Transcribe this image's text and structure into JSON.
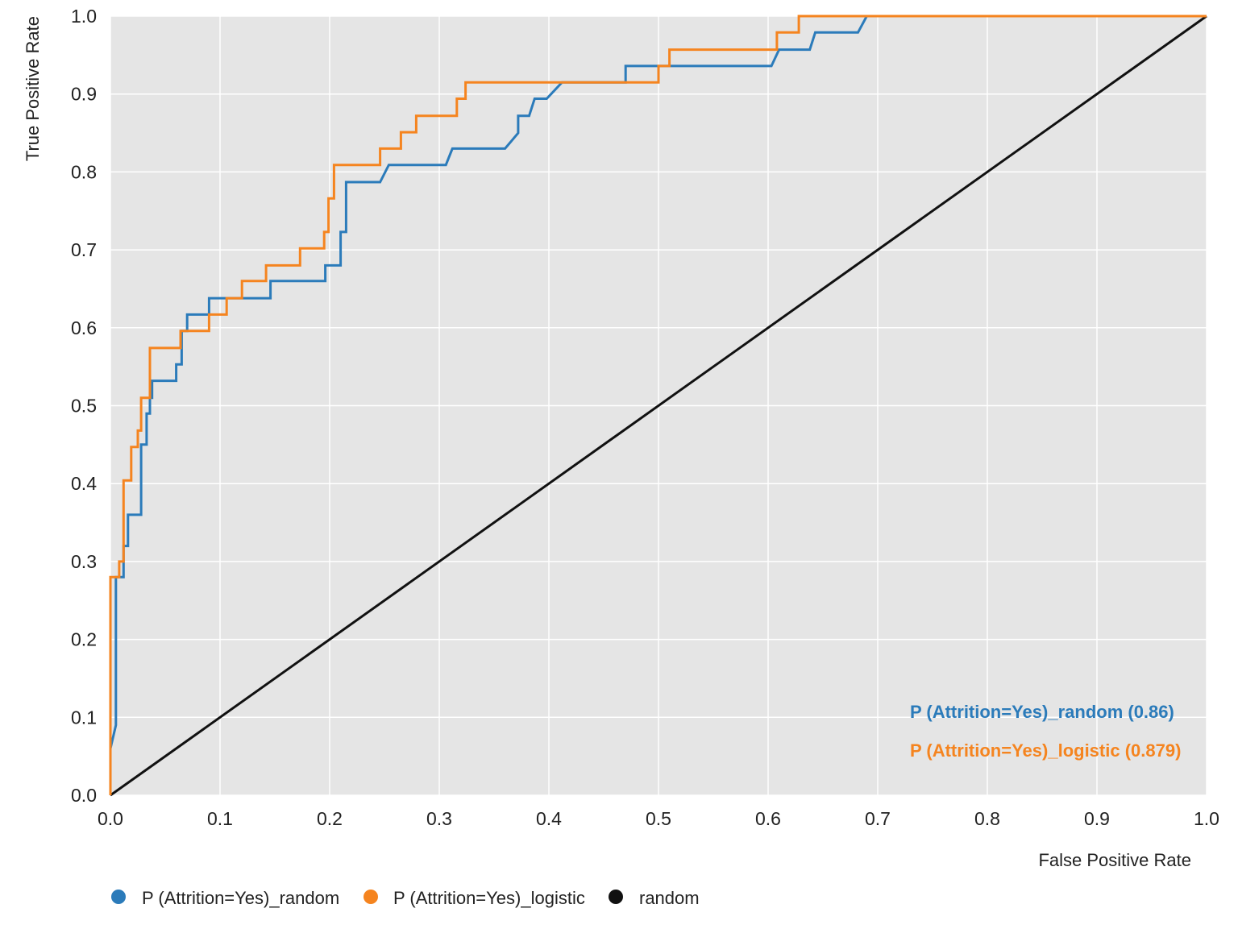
{
  "chart_data": {
    "type": "line",
    "title": "",
    "xlabel": "False Positive Rate",
    "ylabel": "True Positive Rate",
    "xlim": [
      0,
      1
    ],
    "ylim": [
      0,
      1
    ],
    "x_ticks": [
      "0.0",
      "0.1",
      "0.2",
      "0.3",
      "0.4",
      "0.5",
      "0.6",
      "0.7",
      "0.8",
      "0.9",
      "1.0"
    ],
    "y_ticks": [
      "0.0",
      "0.1",
      "0.2",
      "0.3",
      "0.4",
      "0.5",
      "0.6",
      "0.7",
      "0.8",
      "0.9",
      "1.0"
    ],
    "grid": true,
    "legend_position": "bottom",
    "series": [
      {
        "name": "P (Attrition=Yes)_random",
        "color": "#2b7bba",
        "auc_label": "P (Attrition=Yes)_random (0.86)",
        "x": [
          0.0,
          0.0,
          0.005,
          0.005,
          0.012,
          0.012,
          0.016,
          0.016,
          0.028,
          0.028,
          0.033,
          0.033,
          0.036,
          0.036,
          0.038,
          0.038,
          0.06,
          0.06,
          0.065,
          0.065,
          0.07,
          0.07,
          0.09,
          0.09,
          0.146,
          0.146,
          0.196,
          0.196,
          0.21,
          0.21,
          0.215,
          0.215,
          0.246,
          0.254,
          0.306,
          0.312,
          0.36,
          0.372,
          0.372,
          0.382,
          0.387,
          0.398,
          0.412,
          0.42,
          0.47,
          0.47,
          0.5,
          0.5,
          0.603,
          0.61,
          0.638,
          0.643,
          0.67,
          0.682,
          0.69,
          1.0
        ],
        "y": [
          0.0,
          0.06,
          0.09,
          0.28,
          0.28,
          0.32,
          0.32,
          0.36,
          0.36,
          0.45,
          0.45,
          0.49,
          0.49,
          0.51,
          0.51,
          0.532,
          0.532,
          0.553,
          0.553,
          0.596,
          0.596,
          0.617,
          0.617,
          0.638,
          0.638,
          0.66,
          0.66,
          0.68,
          0.68,
          0.723,
          0.723,
          0.787,
          0.787,
          0.809,
          0.809,
          0.83,
          0.83,
          0.85,
          0.872,
          0.872,
          0.894,
          0.894,
          0.915,
          0.915,
          0.915,
          0.936,
          0.936,
          0.936,
          0.936,
          0.957,
          0.957,
          0.979,
          0.979,
          0.979,
          1.0,
          1.0
        ]
      },
      {
        "name": "P (Attrition=Yes)_logistic",
        "color": "#f5841f",
        "auc_label": "P (Attrition=Yes)_logistic (0.879)",
        "x": [
          0.0,
          0.0,
          0.008,
          0.008,
          0.012,
          0.012,
          0.019,
          0.019,
          0.025,
          0.025,
          0.028,
          0.028,
          0.036,
          0.036,
          0.064,
          0.064,
          0.09,
          0.09,
          0.106,
          0.106,
          0.12,
          0.12,
          0.142,
          0.142,
          0.173,
          0.173,
          0.195,
          0.195,
          0.199,
          0.199,
          0.204,
          0.204,
          0.246,
          0.246,
          0.265,
          0.265,
          0.279,
          0.279,
          0.316,
          0.316,
          0.324,
          0.324,
          0.5,
          0.5,
          0.51,
          0.51,
          0.608,
          0.608,
          0.628,
          0.628,
          1.0
        ],
        "y": [
          0.0,
          0.28,
          0.28,
          0.3,
          0.3,
          0.404,
          0.404,
          0.447,
          0.447,
          0.468,
          0.468,
          0.51,
          0.51,
          0.574,
          0.574,
          0.596,
          0.596,
          0.617,
          0.617,
          0.638,
          0.638,
          0.66,
          0.66,
          0.68,
          0.68,
          0.702,
          0.702,
          0.723,
          0.723,
          0.766,
          0.766,
          0.809,
          0.809,
          0.83,
          0.83,
          0.851,
          0.851,
          0.872,
          0.872,
          0.894,
          0.894,
          0.915,
          0.915,
          0.936,
          0.936,
          0.957,
          0.957,
          0.979,
          0.979,
          1.0,
          1.0
        ]
      },
      {
        "name": "random",
        "color": "#111111",
        "x": [
          0.0,
          1.0
        ],
        "y": [
          0.0,
          1.0
        ]
      }
    ]
  }
}
